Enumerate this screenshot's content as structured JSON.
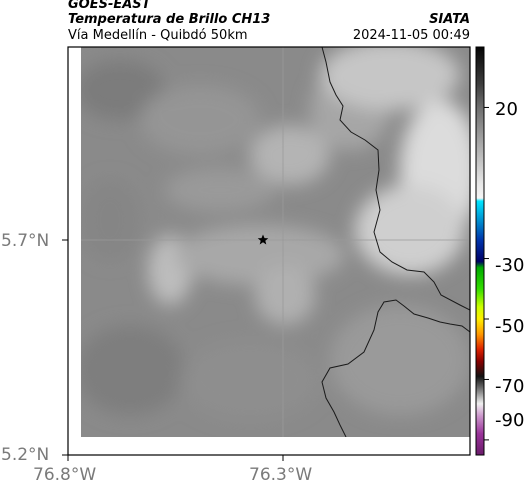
{
  "header": {
    "satellite": "GOES-EAST",
    "product": "Temperatura de Brillo CH13",
    "route": "Vía Medellín - Quibdó 50km",
    "organization": "SIATA",
    "timestamp": "2024-11-05 00:49"
  },
  "map": {
    "lat_ticks": [
      "5.7°N",
      "5.2°N"
    ],
    "lon_ticks": [
      "76.8°W",
      "76.3°W"
    ],
    "marker_icon": "star-icon",
    "colors": {
      "frame": "#000000",
      "gridline": "#9a9a9a",
      "border": "#1a1a1a"
    }
  },
  "colorbar": {
    "labels": [
      "20",
      "-30",
      "-50",
      "-70",
      "-90"
    ],
    "value_range": [
      -95,
      40
    ],
    "stops": [
      {
        "value": 40,
        "color": "#050505"
      },
      {
        "value": 28,
        "color": "#3c3c3c"
      },
      {
        "value": 20,
        "color": "#6e6e6e"
      },
      {
        "value": 8,
        "color": "#a8a8a8"
      },
      {
        "value": -5,
        "color": "#e6e6e6"
      },
      {
        "value": -10,
        "color": "#f5f5f5"
      },
      {
        "value": -11,
        "color": "#00e5ff"
      },
      {
        "value": -18,
        "color": "#0088cc"
      },
      {
        "value": -24,
        "color": "#0033aa"
      },
      {
        "value": -31,
        "color": "#000066"
      },
      {
        "value": -33,
        "color": "#00aa00"
      },
      {
        "value": -40,
        "color": "#33dd00"
      },
      {
        "value": -46,
        "color": "#ccff00"
      },
      {
        "value": -50,
        "color": "#ffee00"
      },
      {
        "value": -55,
        "color": "#ff9900"
      },
      {
        "value": -60,
        "color": "#dd2200"
      },
      {
        "value": -64,
        "color": "#880000"
      },
      {
        "value": -69,
        "color": "#111111"
      },
      {
        "value": -74,
        "color": "#888888"
      },
      {
        "value": -78,
        "color": "#f0f0f0"
      },
      {
        "value": -82,
        "color": "#cc99cc"
      },
      {
        "value": -88,
        "color": "#993399"
      },
      {
        "value": -95,
        "color": "#6a1b6a"
      }
    ]
  }
}
